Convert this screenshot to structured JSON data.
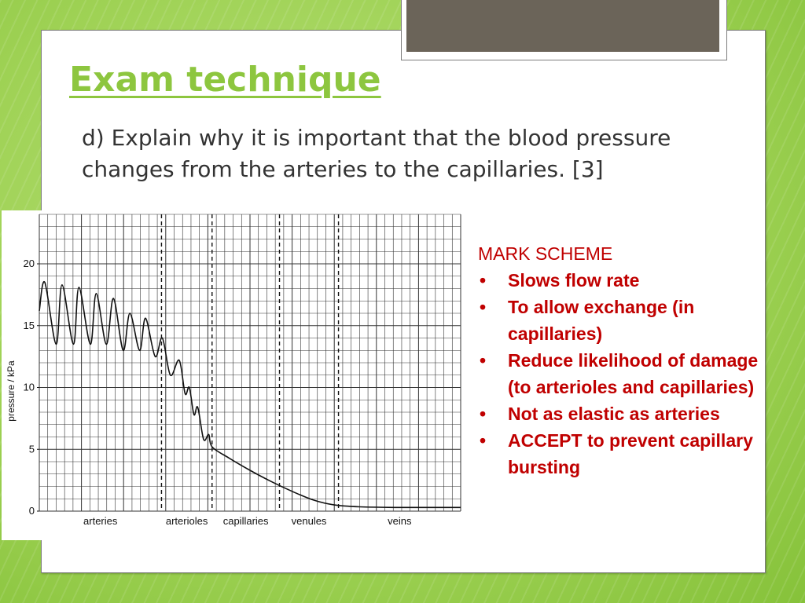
{
  "slide": {
    "title": "Exam technique",
    "question": "d) Explain why it is important that the blood pressure changes from the arteries to the capillaries. [3]"
  },
  "mark_scheme": {
    "heading": "MARK SCHEME",
    "items": [
      "Slows flow rate",
      "To allow exchange (in capillaries)",
      "Reduce likelihood of damage (to arterioles and capillaries)",
      "Not as elastic as arteries",
      "ACCEPT to prevent capillary bursting"
    ]
  },
  "colors": {
    "title": "#8dc63f",
    "mark_scheme": "#c00000",
    "grid": "#333333"
  },
  "chart_data": {
    "type": "line",
    "title": "",
    "xlabel": "",
    "ylabel": "pressure / kPa",
    "ylim": [
      0,
      24
    ],
    "yticks": [
      0,
      5,
      10,
      15,
      20
    ],
    "grid": true,
    "regions": [
      "arteries",
      "arterioles",
      "capillaries",
      "venules",
      "veins"
    ],
    "region_boundaries": [
      0.29,
      0.41,
      0.57,
      0.71
    ],
    "series": [
      {
        "name": "",
        "points": [
          [
            0.0,
            16.2
          ],
          [
            0.013,
            18.5
          ],
          [
            0.04,
            13.5
          ],
          [
            0.054,
            18.3
          ],
          [
            0.081,
            13.5
          ],
          [
            0.094,
            18.1
          ],
          [
            0.121,
            13.5
          ],
          [
            0.135,
            17.6
          ],
          [
            0.159,
            13.5
          ],
          [
            0.176,
            17.2
          ],
          [
            0.199,
            13.0
          ],
          [
            0.215,
            16.0
          ],
          [
            0.238,
            13.0
          ],
          [
            0.252,
            15.6
          ],
          [
            0.275,
            12.5
          ],
          [
            0.292,
            14.0
          ],
          [
            0.311,
            11.0
          ],
          [
            0.332,
            12.2
          ],
          [
            0.346,
            9.5
          ],
          [
            0.356,
            10.0
          ],
          [
            0.367,
            7.8
          ],
          [
            0.376,
            8.4
          ],
          [
            0.39,
            5.8
          ],
          [
            0.402,
            6.2
          ],
          [
            0.41,
            5.2
          ],
          [
            0.45,
            4.3
          ],
          [
            0.5,
            3.3
          ],
          [
            0.55,
            2.4
          ],
          [
            0.6,
            1.6
          ],
          [
            0.65,
            0.9
          ],
          [
            0.7,
            0.5
          ],
          [
            0.76,
            0.35
          ],
          [
            0.85,
            0.3
          ],
          [
            1.0,
            0.3
          ]
        ]
      }
    ]
  }
}
